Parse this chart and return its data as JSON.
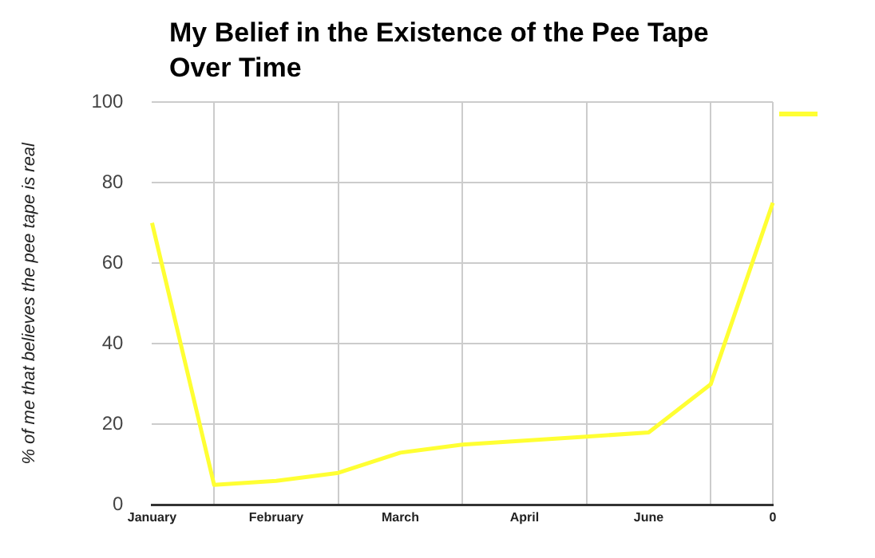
{
  "chart_data": {
    "type": "line",
    "title": "My Belief in the Existence of the Pee Tape Over Time",
    "ylabel": "% of me that believes the pee tape is real",
    "categories": [
      "January",
      null,
      "February",
      null,
      "March",
      null,
      "April",
      null,
      "June",
      null,
      "0"
    ],
    "series": [
      {
        "color": "#ffff33",
        "values": [
          70,
          5,
          6,
          8,
          13,
          15,
          16,
          17,
          18,
          30,
          75
        ]
      }
    ],
    "ylim": [
      0,
      100
    ],
    "yticks": [
      0,
      20,
      40,
      60,
      80,
      100
    ],
    "grid": true,
    "marker": "none",
    "line_style": "solid"
  }
}
